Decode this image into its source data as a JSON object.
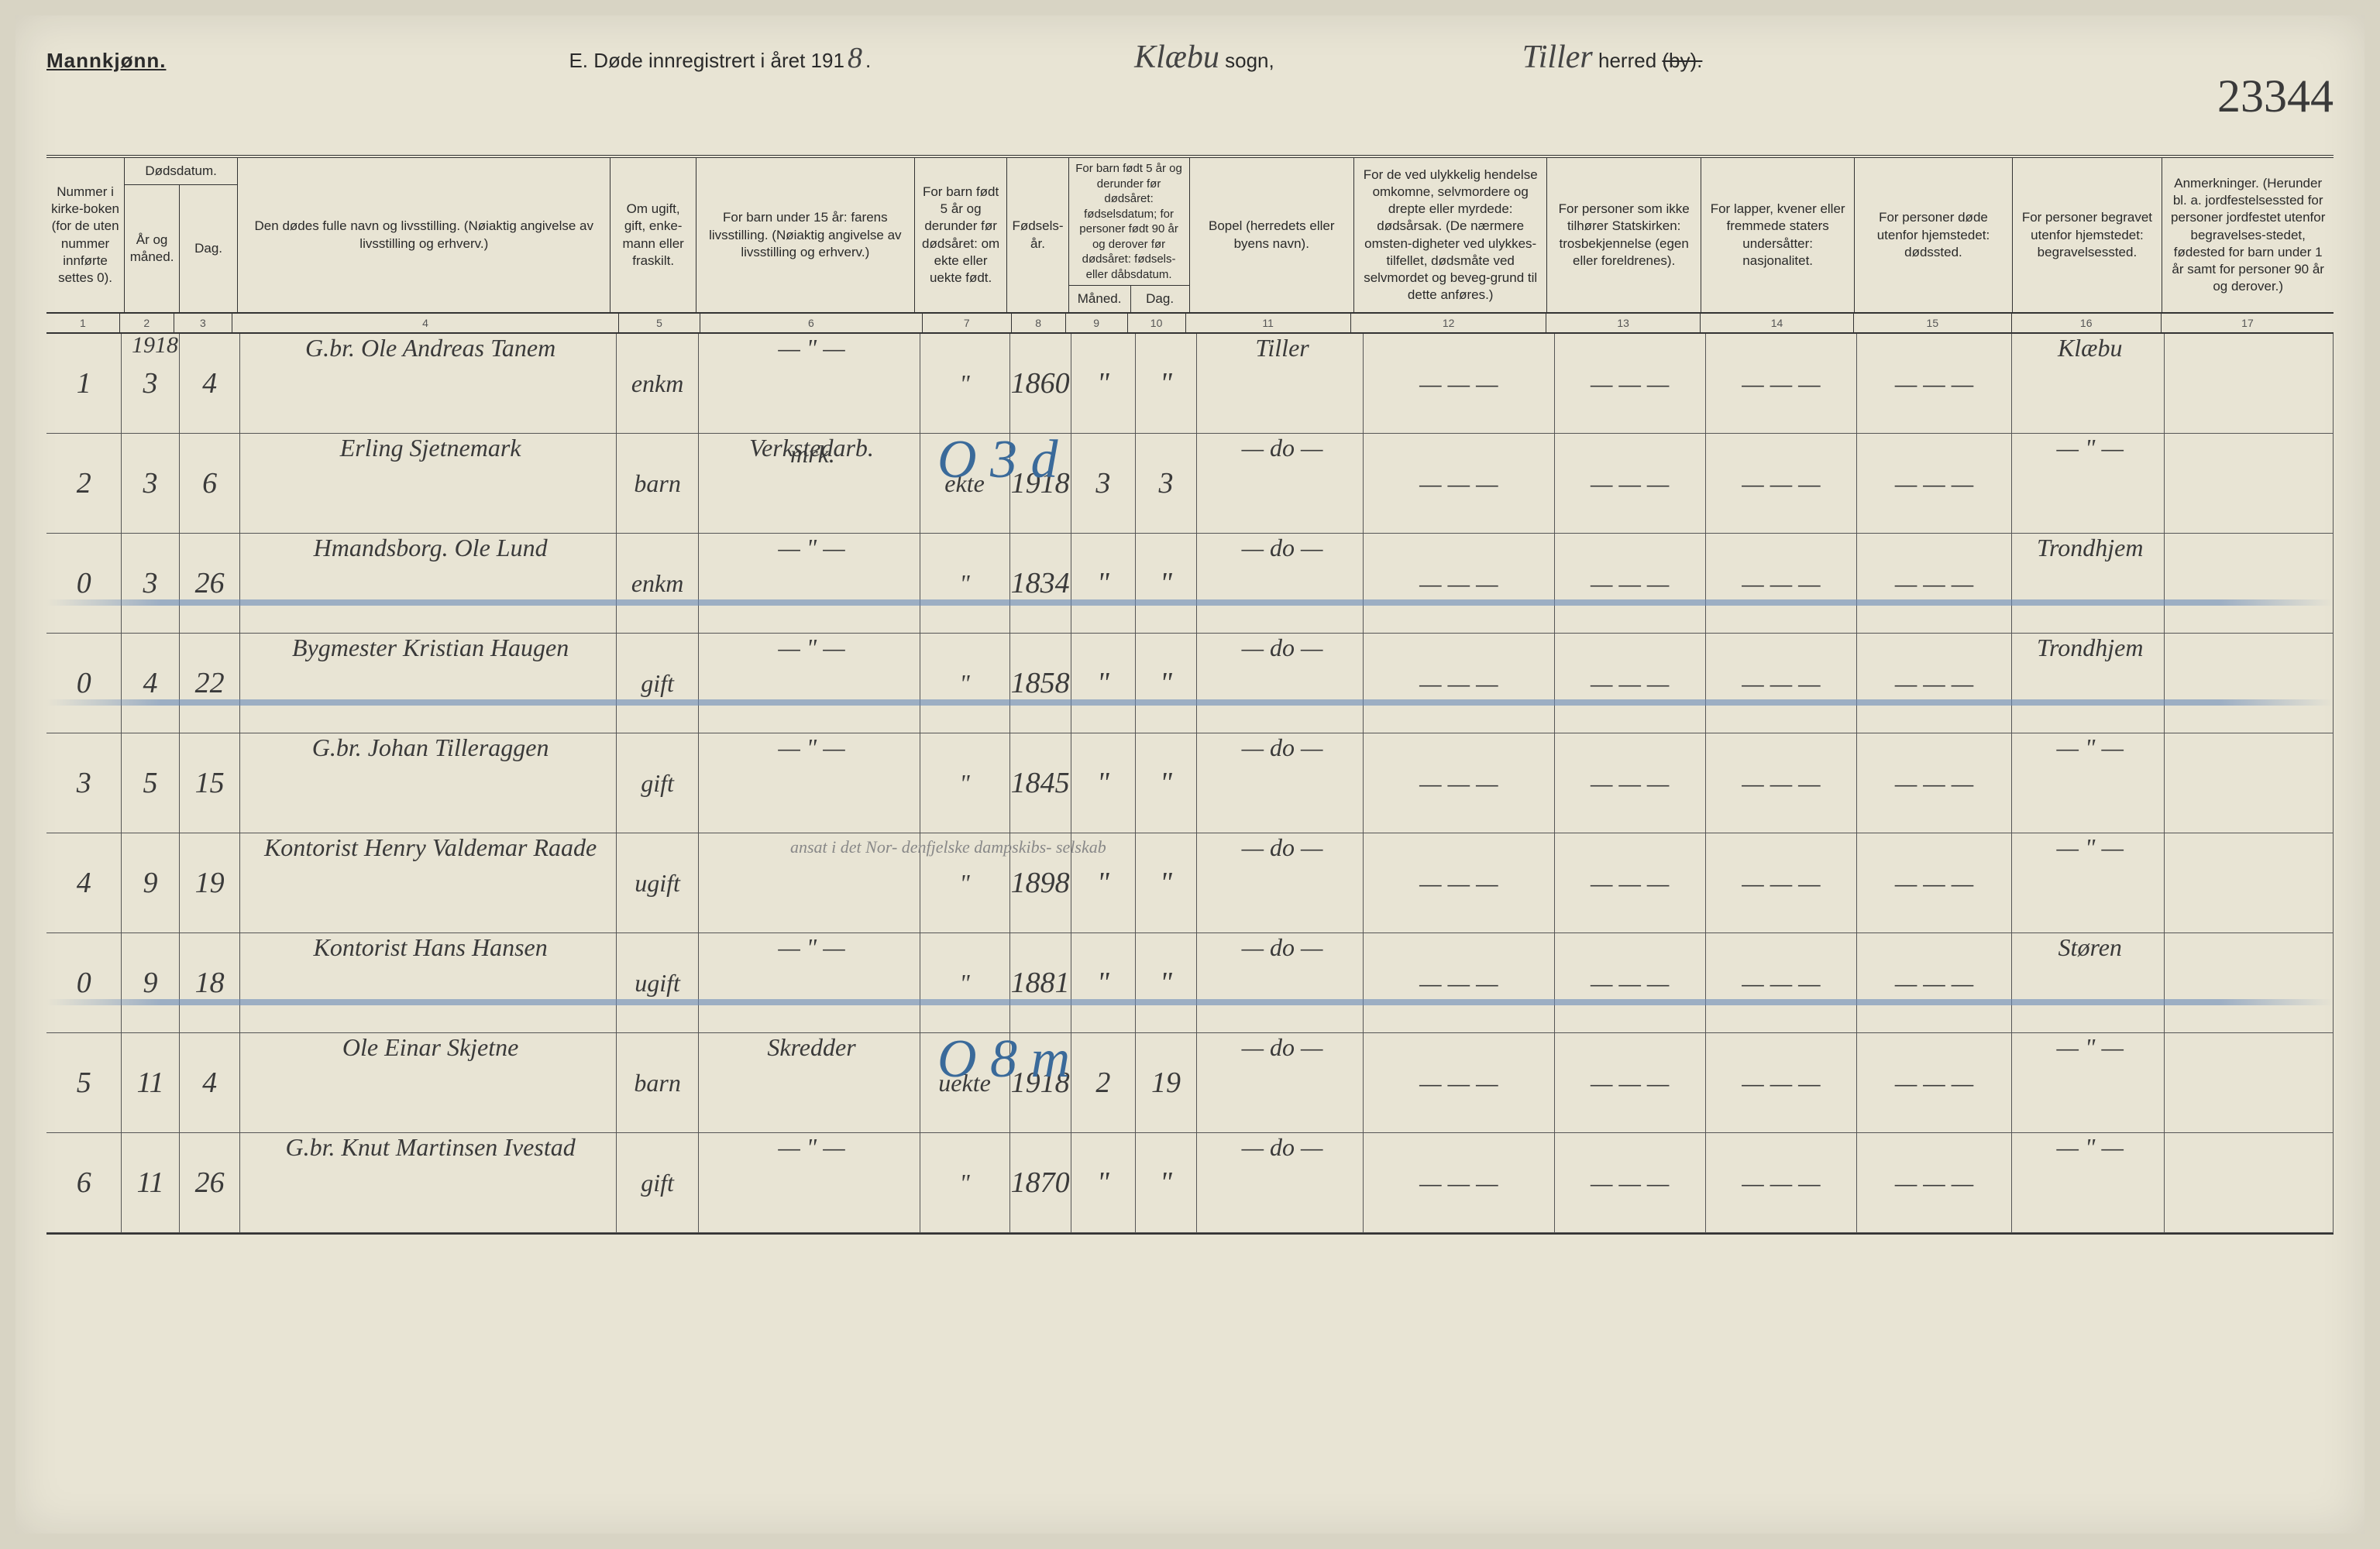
{
  "header": {
    "gender_label": "Mannkjønn.",
    "title_prefix": "E. Døde innregistrert i året 191",
    "title_year_suffix": "8",
    "title_period": ".",
    "sogn_value": "Klæbu",
    "sogn_label": "sogn,",
    "herred_value": "Tiller",
    "herred_label": "herred",
    "herred_struck": "(by).",
    "page_number": "23344"
  },
  "columns": {
    "c1": "Nummer i kirke-boken (for de uten nummer innførte settes 0).",
    "c2a": "Dødsdatum.",
    "c2": "År og måned.",
    "c3": "Dag.",
    "c4": "Den dødes fulle navn og livsstilling. (Nøiaktig angivelse av livsstilling og erhverv.)",
    "c5": "Om ugift, gift, enke-mann eller fraskilt.",
    "c6": "For barn under 15 år: farens livsstilling. (Nøiaktig angivelse av livsstilling og erhverv.)",
    "c7": "For barn født 5 år og derunder før dødsåret: om ekte eller uekte født.",
    "c8": "Fødsels-år.",
    "c9a": "For barn født 5 år og derunder før dødsåret: fødselsdatum; for personer født 90 år og derover før dødsåret: fødsels- eller dåbsdatum.",
    "c9": "Måned.",
    "c10": "Dag.",
    "c11": "Bopel (herredets eller byens navn).",
    "c12": "For de ved ulykkelig hendelse omkomne, selvmordere og drepte eller myrdede: dødsårsak. (De nærmere omsten-digheter ved ulykkes-tilfellet, dødsmåte ved selvmordet og beveg-grund til dette anføres.)",
    "c13": "For personer som ikke tilhører Statskirken: trosbekjennelse (egen eller foreldrenes).",
    "c14": "For lapper, kvener eller fremmede staters undersåtter: nasjonalitet.",
    "c15": "For personer døde utenfor hjemstedet: dødssted.",
    "c16": "For personer begravet utenfor hjemstedet: begravelsessted.",
    "c17": "Anmerkninger. (Herunder bl. a. jordfestelsessted for personer jordfestet utenfor begravelses-stedet, fødested for barn under 1 år samt for personer 90 år og derover.)"
  },
  "colnums": [
    "1",
    "2",
    "3",
    "4",
    "5",
    "6",
    "7",
    "8",
    "9",
    "10",
    "11",
    "12",
    "13",
    "14",
    "15",
    "16",
    "17"
  ],
  "year_above": "1918",
  "rows": [
    {
      "n": "1",
      "am": "3",
      "d": "4",
      "name": "G.br. Ole Andreas Tanem",
      "status": "enkm",
      "father": "— \" —",
      "ekte": "\"",
      "fy": "1860",
      "fm": "\"",
      "fd": "\"",
      "bopel": "Tiller",
      "c12": "— — —",
      "c13": "— — —",
      "c14": "— — —",
      "c15": "— — —",
      "c16": "Klæbu",
      "c17": ""
    },
    {
      "n": "2",
      "am": "3",
      "d": "6",
      "name": "Erling Sjetnemark",
      "status": "barn",
      "top_note": "mrk.",
      "father": "Verkstedarb.",
      "ekte": "ekte",
      "fy": "1918",
      "fm": "3",
      "fd": "3",
      "bopel": "— do —",
      "c12": "— — —",
      "c13": "— — —",
      "c14": "— — —",
      "c15": "— — —",
      "c16": "— \" —",
      "c17": "",
      "blue_note": "O 3 d"
    },
    {
      "n": "0",
      "am": "3",
      "d": "26",
      "name": "Hmandsborg. Ole Lund",
      "status": "enkm",
      "father": "— \" —",
      "ekte": "\"",
      "fy": "1834",
      "fm": "\"",
      "fd": "\"",
      "bopel": "— do —",
      "c12": "— — —",
      "c13": "— — —",
      "c14": "— — —",
      "c15": "— — —",
      "c16": "Trondhjem",
      "c17": "",
      "blue_strike": true
    },
    {
      "n": "0",
      "am": "4",
      "d": "22",
      "name": "Bygmester Kristian Haugen",
      "status": "gift",
      "father": "— \" —",
      "ekte": "\"",
      "fy": "1858",
      "fm": "\"",
      "fd": "\"",
      "bopel": "— do —",
      "c12": "— — —",
      "c13": "— — —",
      "c14": "— — —",
      "c15": "— — —",
      "c16": "Trondhjem",
      "c17": "",
      "blue_strike": true
    },
    {
      "n": "3",
      "am": "5",
      "d": "15",
      "name": "G.br. Johan Tilleraggen",
      "status": "gift",
      "father": "— \" —",
      "ekte": "\"",
      "fy": "1845",
      "fm": "\"",
      "fd": "\"",
      "bopel": "— do —",
      "c12": "— — —",
      "c13": "— — —",
      "c14": "— — —",
      "c15": "— — —",
      "c16": "— \" —",
      "c17": ""
    },
    {
      "n": "4",
      "am": "9",
      "d": "19",
      "name": "Kontorist Henry Valdemar Raade",
      "status": "ugift",
      "father": "",
      "faint_note": "ansat i det Nor-\ndenfjelske dampskibs-\nselskab",
      "ekte": "\"",
      "fy": "1898",
      "fm": "\"",
      "fd": "\"",
      "bopel": "— do —",
      "c12": "— — —",
      "c13": "— — —",
      "c14": "— — —",
      "c15": "— — —",
      "c16": "— \" —",
      "c17": ""
    },
    {
      "n": "0",
      "am": "9",
      "d": "18",
      "name": "Kontorist Hans Hansen",
      "status": "ugift",
      "father": "— \" —",
      "ekte": "\"",
      "fy": "1881",
      "fm": "\"",
      "fd": "\"",
      "bopel": "— do —",
      "c12": "— — —",
      "c13": "— — —",
      "c14": "— — —",
      "c15": "— — —",
      "c16": "Støren",
      "c17": "",
      "blue_strike": true
    },
    {
      "n": "5",
      "am": "11",
      "d": "4",
      "name": "Ole Einar Skjetne",
      "status": "barn",
      "father": "Skredder",
      "ekte": "uekte",
      "fy": "1918",
      "fm": "2",
      "fd": "19",
      "bopel": "— do —",
      "c12": "— — —",
      "c13": "— — —",
      "c14": "— — —",
      "c15": "— — —",
      "c16": "— \" —",
      "c17": "",
      "blue_note": "O 8 m"
    },
    {
      "n": "6",
      "am": "11",
      "d": "26",
      "name": "G.br. Knut Martinsen Ivestad",
      "status": "gift",
      "father": "— \" —",
      "ekte": "\"",
      "fy": "1870",
      "fm": "\"",
      "fd": "\"",
      "bopel": "— do —",
      "c12": "— — —",
      "c13": "— — —",
      "c14": "— — —",
      "c15": "— — —",
      "c16": "— \" —",
      "c17": ""
    }
  ]
}
